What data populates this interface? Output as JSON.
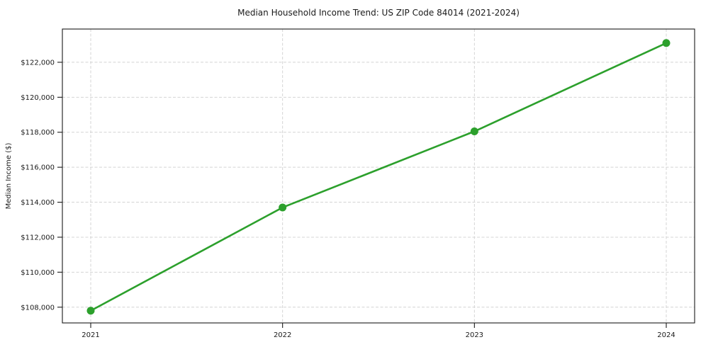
{
  "chart_data": {
    "type": "line",
    "title": "Median Household Income Trend: US ZIP Code 84014 (2021-2024)",
    "xlabel": "",
    "ylabel": "Median Income ($)",
    "x": [
      "2021",
      "2022",
      "2023",
      "2024"
    ],
    "values": [
      107800,
      113700,
      118050,
      123100
    ],
    "ylim": [
      107100,
      123900
    ],
    "yticks": [
      108000,
      110000,
      112000,
      114000,
      116000,
      118000,
      120000,
      122000
    ],
    "ytick_prefix": "$",
    "grid": true,
    "grid_style": "dashed",
    "legend": false,
    "colors": {
      "line": "#2ca02c",
      "marker": "#2ca02c",
      "grid": "#d4d4d4",
      "axis": "#1a1a1a",
      "text": "#1a1a1a",
      "background": "#ffffff"
    }
  }
}
